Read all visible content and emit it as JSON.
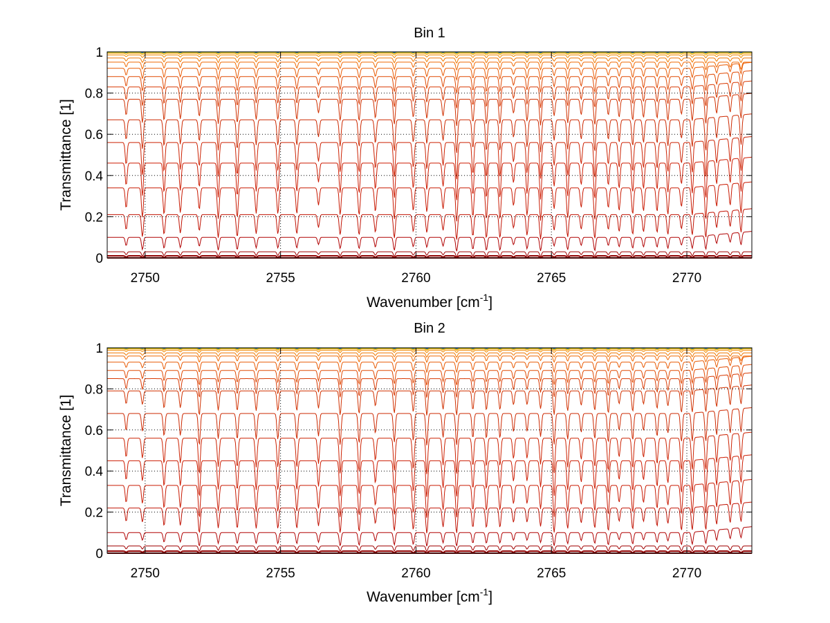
{
  "chart_data": [
    {
      "type": "line",
      "title": "Bin 1",
      "xlabel": "Wavenumber [cm",
      "xlabel_sup": "-1",
      "xlabel_tail": "]",
      "ylabel": "Transmittance [1]",
      "xlim": [
        2748.6,
        2772.4
      ],
      "ylim": [
        0,
        1
      ],
      "grid": true,
      "x_ticks": [
        2750,
        2755,
        2760,
        2765,
        2770
      ],
      "x_tick_labels": [
        "2750",
        "2755",
        "2760",
        "2765",
        "2770"
      ],
      "y_ticks": [
        0,
        0.2,
        0.4,
        0.6,
        0.8,
        1
      ],
      "y_tick_labels": [
        "0",
        "0.2",
        "0.4",
        "0.6",
        "0.8",
        "1"
      ],
      "series_count": 20,
      "series_baselines": [
        0.0,
        0.01,
        0.03,
        0.1,
        0.21,
        0.34,
        0.46,
        0.56,
        0.67,
        0.77,
        0.83,
        0.88,
        0.92,
        0.95,
        0.97,
        0.985,
        0.993,
        0.997,
        0.999,
        1.0
      ],
      "series_colors": [
        "#7f0000",
        "#8f0000",
        "#a00000",
        "#b00000",
        "#c01000",
        "#c81800",
        "#cc1a00",
        "#cc2000",
        "#cc2800",
        "#d03000",
        "#d83800",
        "#e04800",
        "#e85800",
        "#f06800",
        "#f07800",
        "#f08800",
        "#f0a000",
        "#e8c000",
        "#40b060",
        "#2050c0"
      ],
      "absorption_lines": [
        2749.3,
        2749.9,
        2750.7,
        2751.3,
        2752.0,
        2752.7,
        2753.4,
        2754.1,
        2754.9,
        2755.6,
        2756.4,
        2757.2,
        2757.9,
        2758.5,
        2759.2,
        2759.9,
        2760.4,
        2761.0,
        2761.5,
        2762.1,
        2762.6,
        2763.1,
        2763.6,
        2764.1,
        2764.6,
        2765.1,
        2765.6,
        2766.1,
        2766.6,
        2767.1,
        2767.5,
        2768.0,
        2768.4,
        2768.9,
        2769.3,
        2769.8,
        2770.2,
        2770.7,
        2771.1,
        2771.6,
        2772.0
      ]
    },
    {
      "type": "line",
      "title": "Bin 2",
      "xlabel": "Wavenumber [cm",
      "xlabel_sup": "-1",
      "xlabel_tail": "]",
      "ylabel": "Transmittance [1]",
      "xlim": [
        2748.6,
        2772.4
      ],
      "ylim": [
        0,
        1
      ],
      "grid": true,
      "x_ticks": [
        2750,
        2755,
        2760,
        2765,
        2770
      ],
      "x_tick_labels": [
        "2750",
        "2755",
        "2760",
        "2765",
        "2770"
      ],
      "y_ticks": [
        0,
        0.2,
        0.4,
        0.6,
        0.8,
        1
      ],
      "y_tick_labels": [
        "0",
        "0.2",
        "0.4",
        "0.6",
        "0.8",
        "1"
      ],
      "series_count": 20,
      "series_baselines": [
        0.0,
        0.01,
        0.035,
        0.1,
        0.22,
        0.33,
        0.45,
        0.56,
        0.68,
        0.79,
        0.85,
        0.89,
        0.93,
        0.96,
        0.975,
        0.988,
        0.994,
        0.997,
        0.999,
        1.0
      ],
      "series_colors": [
        "#7f0000",
        "#8f0000",
        "#a00000",
        "#b00000",
        "#c01000",
        "#c81800",
        "#cc1a00",
        "#cc2000",
        "#cc2800",
        "#d03000",
        "#d83800",
        "#e04800",
        "#e85800",
        "#f06800",
        "#f07800",
        "#f08800",
        "#f0a000",
        "#e8c000",
        "#40b060",
        "#2050c0"
      ],
      "absorption_lines": [
        2749.3,
        2749.9,
        2750.7,
        2751.3,
        2752.0,
        2752.7,
        2753.4,
        2754.1,
        2754.9,
        2755.6,
        2756.4,
        2757.2,
        2757.9,
        2758.5,
        2759.2,
        2759.9,
        2760.4,
        2761.0,
        2761.5,
        2762.1,
        2762.6,
        2763.1,
        2763.6,
        2764.1,
        2764.6,
        2765.1,
        2765.6,
        2766.1,
        2766.6,
        2767.1,
        2767.5,
        2768.0,
        2768.4,
        2768.9,
        2769.3,
        2769.8,
        2770.2,
        2770.7,
        2771.1,
        2771.6,
        2772.0
      ]
    }
  ]
}
